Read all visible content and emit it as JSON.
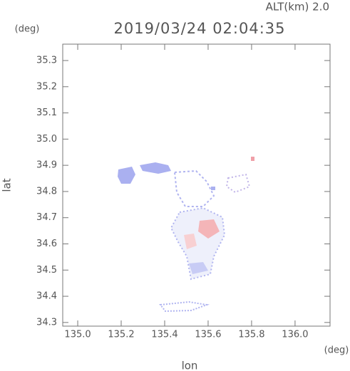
{
  "chart_data": {
    "type": "map",
    "title": "2019/03/24 02:04:35",
    "subtitle": "ALT(km) 2.0",
    "y_unit": "(deg)",
    "x_unit": "(deg)",
    "x_label": "lon",
    "y_label": "lat",
    "xlim": [
      134.931,
      136.161
    ],
    "ylim": [
      34.286,
      35.3625
    ],
    "xticks": [
      {
        "value": 135,
        "label": "135.0"
      },
      135.2,
      135.4,
      135.6,
      135.8,
      {
        "value": 136,
        "label": "136.0"
      }
    ],
    "yticks": [
      34.3,
      34.4,
      34.5,
      34.6,
      34.7,
      34.8,
      34.9,
      {
        "value": 35,
        "label": "35.0"
      },
      35.1,
      35.2,
      35.3
    ]
  }
}
